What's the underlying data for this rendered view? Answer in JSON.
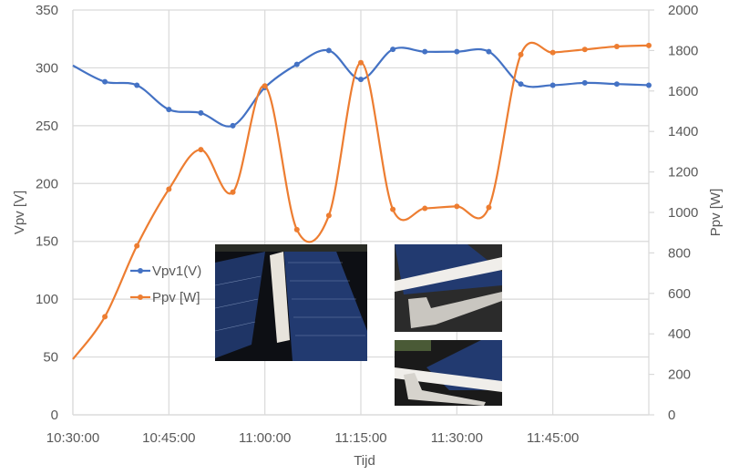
{
  "chart_data": {
    "type": "line",
    "title": "",
    "xlabel": "Tijd",
    "ylabel": "Vpv [V]",
    "y2label": "Ppv [W]",
    "x": [
      "10:30:00",
      "10:35:00",
      "10:40:00",
      "10:45:00",
      "10:50:00",
      "10:55:00",
      "11:00:00",
      "11:05:00",
      "11:10:00",
      "11:15:00",
      "11:20:00",
      "11:25:00",
      "11:30:00",
      "11:35:00",
      "11:40:00",
      "11:45:00",
      "11:50:00",
      "11:55:00",
      "12:00:00"
    ],
    "x_tick_labels": [
      "10:30:00",
      "10:45:00",
      "11:00:00",
      "11:15:00",
      "11:30:00",
      "11:45:00"
    ],
    "series": [
      {
        "name": "Vpv1(V)",
        "axis": "left",
        "color": "#4472C4",
        "values": [
          302,
          288,
          285,
          264,
          261,
          250,
          283,
          303,
          315,
          290,
          316,
          314,
          314,
          314,
          286,
          285,
          287,
          286,
          285
        ]
      },
      {
        "name": "Ppv [W]",
        "axis": "right",
        "color": "#ED7D31",
        "values": [
          275,
          485,
          835,
          1115,
          1310,
          1100,
          1625,
          915,
          985,
          1740,
          1015,
          1020,
          1030,
          1025,
          1780,
          1790,
          1805,
          1820,
          1825
        ]
      }
    ],
    "ylim": [
      0,
      350
    ],
    "y_ticks": [
      0,
      50,
      100,
      150,
      200,
      250,
      300,
      350
    ],
    "y2lim": [
      0,
      2000
    ],
    "y2_ticks": [
      0,
      200,
      400,
      600,
      800,
      1000,
      1200,
      1400,
      1600,
      1800,
      2000
    ],
    "grid": true,
    "smoothed": true,
    "legend_position": "inside-left",
    "legend": [
      "Vpv1(V)",
      "Ppv [W]"
    ]
  },
  "insets": [
    {
      "name": "solar-panels-with-white-beam-photo"
    },
    {
      "name": "concrete-mount-with-beam-photo"
    },
    {
      "name": "panel-row-with-concrete-mount-photo"
    }
  ]
}
